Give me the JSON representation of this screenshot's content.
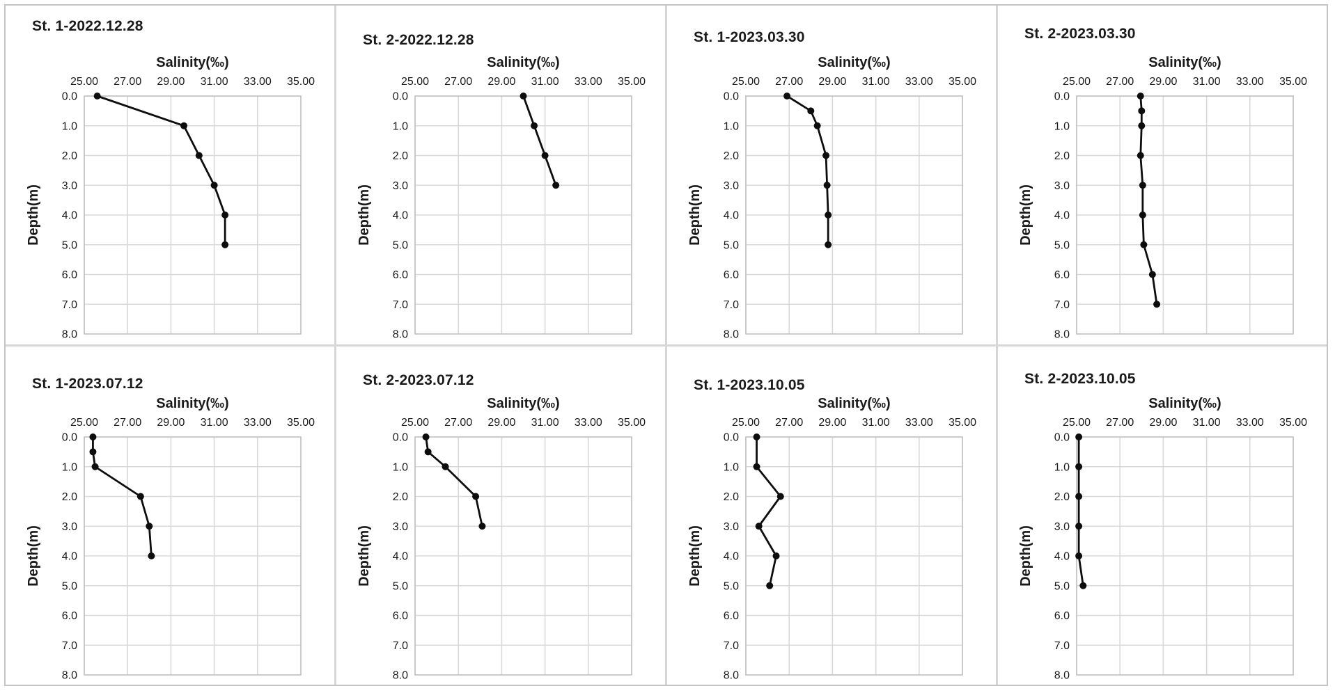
{
  "figure": {
    "description": "Vertical salinity-depth profiles at two stations (St. 1, St. 2) on four survey dates",
    "panel_count": 8,
    "grid_layout": "2 rows x 4 columns"
  },
  "colors": {
    "background": "#ffffff",
    "series_line": "#0d0d0d",
    "marker": "#0d0d0d",
    "gridline": "#d9d9d9",
    "plot_border": "#c3c3c3",
    "text": "#1a1a1a",
    "panel_divider": "#d7d7d7",
    "outer_border": "#c4c4c4"
  },
  "chart_data": {
    "type": "line",
    "shared_axes": {
      "xlabel": "Salinity(‰)",
      "ylabel": "Depth(m)",
      "x_axis_position": "top",
      "depth_increases_downward": true,
      "grid": true,
      "xlim": [
        25.0,
        35.0
      ],
      "ylim": [
        0.0,
        8.0
      ],
      "x_ticks": [
        25,
        27,
        29,
        31,
        33,
        35
      ],
      "x_tick_labels": [
        "25.00",
        "27.00",
        "29.00",
        "31.00",
        "33.00",
        "35.00"
      ],
      "y_ticks": [
        0,
        1,
        2,
        3,
        4,
        5,
        6,
        7,
        8
      ],
      "y_tick_labels": [
        "0.0",
        "1.0",
        "2.0",
        "3.0",
        "4.0",
        "5.0",
        "6.0",
        "7.0",
        "8.0"
      ]
    },
    "panels": [
      {
        "title": "St. 1-2022.12.28",
        "series": {
          "name": "salinity profile",
          "depth_m": [
            0.0,
            1.0,
            2.0,
            3.0,
            4.0,
            5.0
          ],
          "salinity_permille": [
            25.6,
            29.6,
            30.3,
            31.0,
            31.5,
            31.5
          ]
        }
      },
      {
        "title": "St. 2-2022.12.28",
        "series": {
          "name": "salinity profile",
          "depth_m": [
            0.0,
            1.0,
            2.0,
            3.0
          ],
          "salinity_permille": [
            30.0,
            30.5,
            31.0,
            31.5
          ]
        }
      },
      {
        "title": "St. 1-2023.03.30",
        "series": {
          "name": "salinity profile",
          "depth_m": [
            0.0,
            0.5,
            1.0,
            2.0,
            3.0,
            4.0,
            5.0
          ],
          "salinity_permille": [
            26.9,
            28.0,
            28.3,
            28.7,
            28.75,
            28.8,
            28.8
          ]
        }
      },
      {
        "title": "St. 2-2023.03.30",
        "series": {
          "name": "salinity profile",
          "depth_m": [
            0.0,
            0.5,
            1.0,
            2.0,
            3.0,
            4.0,
            5.0,
            6.0,
            7.0
          ],
          "salinity_permille": [
            27.95,
            28.0,
            28.0,
            27.95,
            28.05,
            28.05,
            28.1,
            28.5,
            28.7
          ]
        }
      },
      {
        "title": "St. 1-2023.07.12",
        "series": {
          "name": "salinity profile",
          "depth_m": [
            0.0,
            0.5,
            1.0,
            2.0,
            3.0,
            4.0
          ],
          "salinity_permille": [
            25.4,
            25.4,
            25.5,
            27.6,
            28.0,
            28.1
          ]
        }
      },
      {
        "title": "St. 2-2023.07.12",
        "series": {
          "name": "salinity profile",
          "depth_m": [
            0.0,
            0.5,
            1.0,
            2.0,
            3.0
          ],
          "salinity_permille": [
            25.5,
            25.6,
            26.4,
            27.8,
            28.1
          ]
        }
      },
      {
        "title": "St. 1-2023.10.05",
        "series": {
          "name": "salinity profile",
          "depth_m": [
            0.0,
            1.0,
            2.0,
            3.0,
            4.0,
            5.0
          ],
          "salinity_permille": [
            25.5,
            25.5,
            26.6,
            25.6,
            26.4,
            26.1
          ]
        }
      },
      {
        "title": "St. 2-2023.10.05",
        "series": {
          "name": "salinity profile",
          "depth_m": [
            0.0,
            1.0,
            2.0,
            3.0,
            4.0,
            5.0
          ],
          "salinity_permille": [
            25.1,
            25.1,
            25.1,
            25.1,
            25.1,
            25.3
          ]
        }
      }
    ]
  }
}
